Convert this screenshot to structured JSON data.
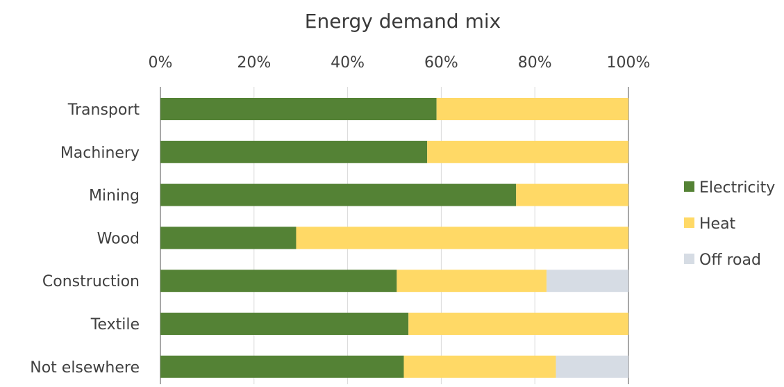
{
  "chart_data": {
    "type": "bar",
    "orientation": "horizontal",
    "stacked": "percent",
    "title": "Energy demand mix",
    "xlabel": "",
    "ylabel": "",
    "xlim": [
      0,
      100
    ],
    "x_ticks": [
      "0%",
      "20%",
      "40%",
      "60%",
      "80%",
      "100%"
    ],
    "x_tick_values": [
      0,
      20,
      40,
      60,
      80,
      100
    ],
    "x_axis_position": "top",
    "grid": true,
    "legend_position": "right",
    "categories": [
      "Transport",
      "Machinery",
      "Mining",
      "Wood",
      "Construction",
      "Textile",
      "Not elsewhere"
    ],
    "series": [
      {
        "name": "Electricity",
        "color": "#548235",
        "values": [
          59,
          57,
          76,
          29,
          50.5,
          53,
          52
        ]
      },
      {
        "name": "Heat",
        "color": "#ffd966",
        "values": [
          41,
          43,
          24,
          71,
          32,
          47,
          32.5
        ]
      },
      {
        "name": "Off road",
        "color": "#d6dce4",
        "values": [
          0,
          0,
          0,
          0,
          17.5,
          0,
          15.5
        ]
      }
    ]
  }
}
